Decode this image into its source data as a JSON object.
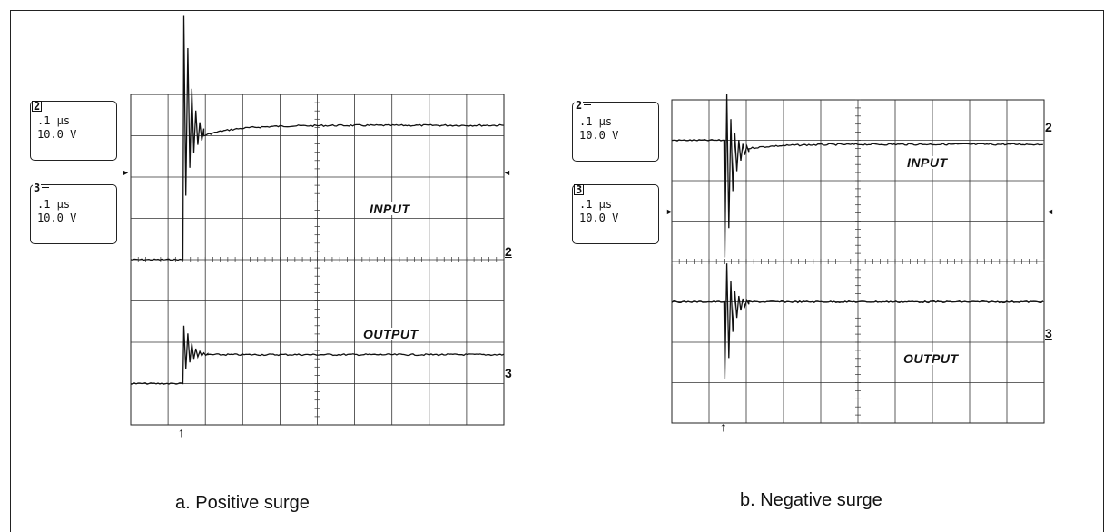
{
  "chart_data": [
    {
      "type": "line",
      "title": "",
      "caption": "a. Positive surge",
      "channels": [
        {
          "id": "2",
          "time_div": ".1 μs",
          "volts_div": "10.0 V",
          "tag_style": "boxed"
        },
        {
          "id": "3",
          "time_div": ".1 μs",
          "volts_div": "10.0 V",
          "tag_style": "dash"
        }
      ],
      "grid": {
        "divisions_x": 10,
        "divisions_y": 8
      },
      "series": [
        {
          "name": "INPUT",
          "marker": "2",
          "baseline_div": 4.0,
          "step_to_div": 1.0,
          "overshoot_div": -1.9,
          "ring_cycles": 5,
          "settle_div": 0.75,
          "step_x_div": 1.4
        },
        {
          "name": "OUTPUT",
          "marker": "3",
          "baseline_div": 7.0,
          "step_to_div": 6.3,
          "overshoot_div": 5.6,
          "ring_cycles": 6,
          "settle_div": 6.3,
          "step_x_div": 1.4
        }
      ],
      "trigger_x_div": 1.4
    },
    {
      "type": "line",
      "title": "",
      "caption": "b. Negative surge",
      "channels": [
        {
          "id": "2",
          "time_div": ".1 μs",
          "volts_div": "10.0 V",
          "tag_style": "dash"
        },
        {
          "id": "3",
          "time_div": ".1 μs",
          "volts_div": "10.0 V",
          "tag_style": "boxed"
        }
      ],
      "grid": {
        "divisions_x": 10,
        "divisions_y": 8
      },
      "series": [
        {
          "name": "INPUT",
          "marker": "2",
          "baseline_div": 1.0,
          "step_to_div": 1.2,
          "overshoot_div": 3.9,
          "ring_cycles": 6,
          "settle_div": 1.1,
          "step_x_div": 1.4
        },
        {
          "name": "OUTPUT",
          "marker": "3",
          "baseline_div": 5.0,
          "step_to_div": 5.0,
          "overshoot_div": 6.9,
          "ring_cycles": 6,
          "settle_div": 5.0,
          "step_x_div": 1.4
        }
      ],
      "trigger_x_div": 1.4
    }
  ]
}
